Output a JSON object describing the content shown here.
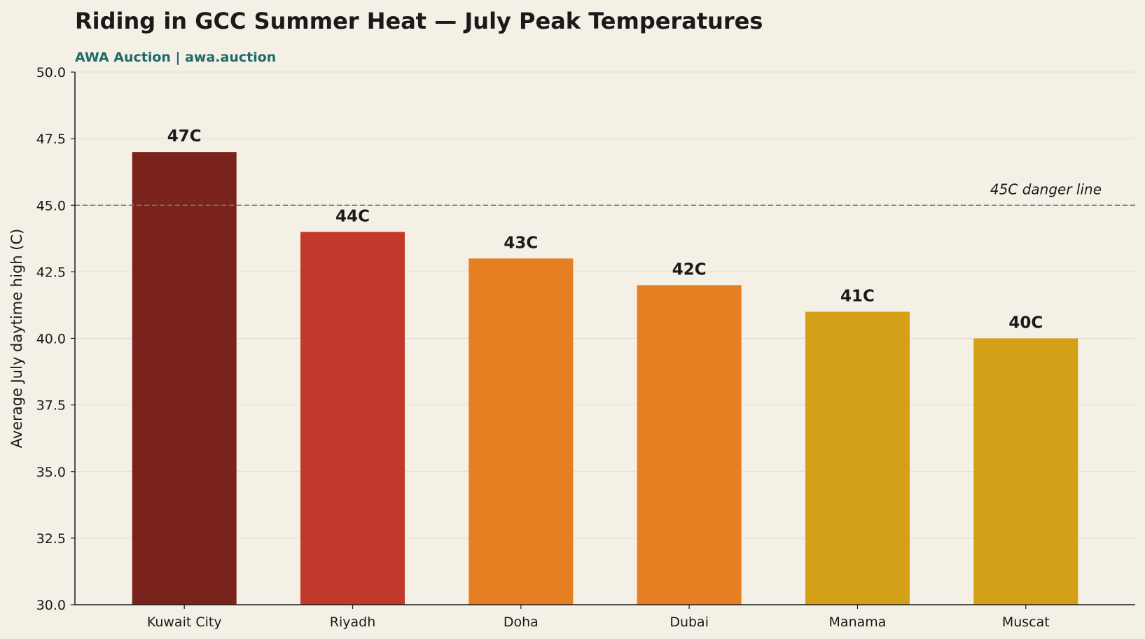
{
  "chart_data": {
    "type": "bar",
    "title": "Riding in GCC Summer Heat — July Peak Temperatures",
    "subtitle": "AWA Auction  |  awa.auction",
    "xlabel": "",
    "ylabel": "Average July daytime high (C)",
    "categories": [
      "Kuwait City",
      "Riyadh",
      "Doha",
      "Dubai",
      "Manama",
      "Muscat"
    ],
    "values": [
      47,
      44,
      43,
      42,
      41,
      40
    ],
    "value_labels": [
      "47C",
      "44C",
      "43C",
      "42C",
      "41C",
      "40C"
    ],
    "bar_colors": [
      "#7a221c",
      "#c0392b",
      "#e67e22",
      "#e67e22",
      "#d4a017",
      "#d4a017"
    ],
    "ylim": [
      30,
      50
    ],
    "yticks": [
      "30.0",
      "32.5",
      "35.0",
      "37.5",
      "40.0",
      "42.5",
      "45.0",
      "47.5",
      "50.0"
    ],
    "grid": "horizontal",
    "reference_line": {
      "value": 45,
      "label": "45C danger line",
      "style": "dashed",
      "color": "#777777"
    },
    "legend": "none"
  },
  "colors": {
    "background": "#f5f0e6",
    "subtitle": "#1f6b68",
    "text": "#1a1a1a",
    "grid": "#dedbd2"
  }
}
